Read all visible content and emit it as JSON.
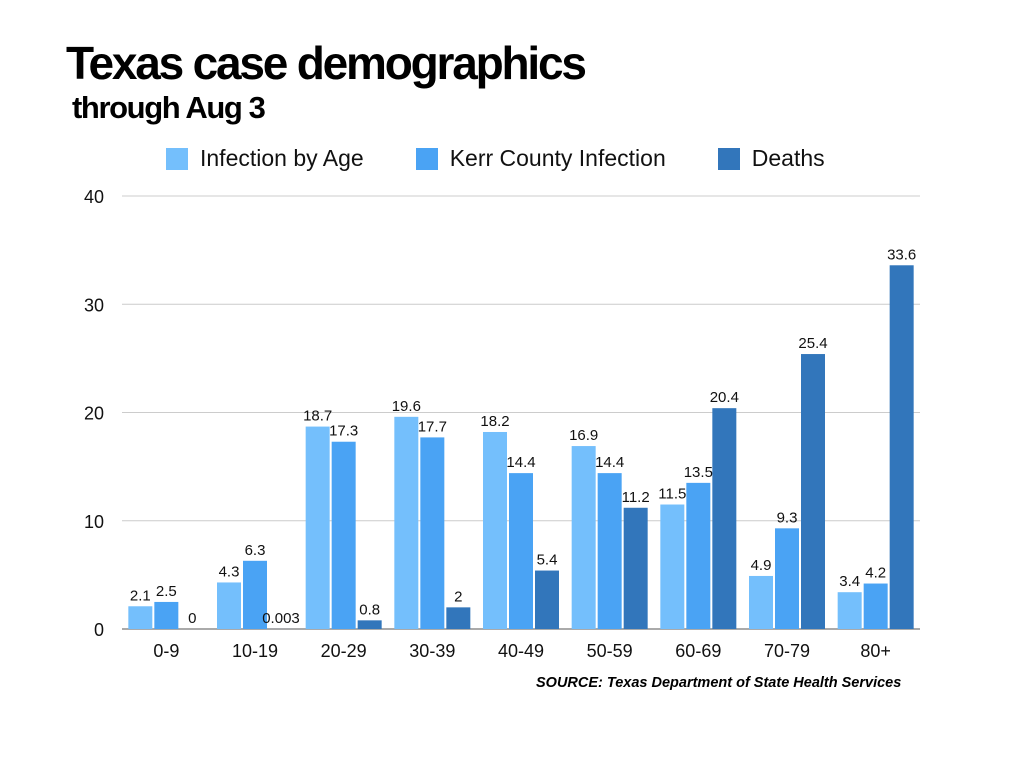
{
  "title": "Texas case demographics",
  "subtitle": "through Aug 3",
  "source": "SOURCE: Texas Department of State Health Services",
  "colors": {
    "series": [
      "#74bffc",
      "#4aa3f4",
      "#3276bb"
    ],
    "grid": "#cccccc",
    "axis": "#555555"
  },
  "chart_data": {
    "type": "bar",
    "categories": [
      "0-9",
      "10-19",
      "20-29",
      "30-39",
      "40-49",
      "50-59",
      "60-69",
      "70-79",
      "80+"
    ],
    "series": [
      {
        "name": "Infection by Age",
        "values": [
          2.1,
          4.3,
          18.7,
          19.6,
          18.2,
          16.9,
          11.5,
          4.9,
          3.4
        ]
      },
      {
        "name": "Kerr County Infection",
        "values": [
          2.5,
          6.3,
          17.3,
          17.7,
          14.4,
          14.4,
          13.5,
          9.3,
          4.2
        ]
      },
      {
        "name": "Deaths",
        "values": [
          0,
          0.003,
          0.8,
          2,
          5.4,
          11.2,
          20.4,
          25.4,
          33.6
        ]
      }
    ],
    "yticks": [
      0,
      10,
      20,
      30,
      40
    ],
    "ylim": [
      0,
      40
    ],
    "grid": true,
    "legend": "top",
    "data_labels": true
  }
}
